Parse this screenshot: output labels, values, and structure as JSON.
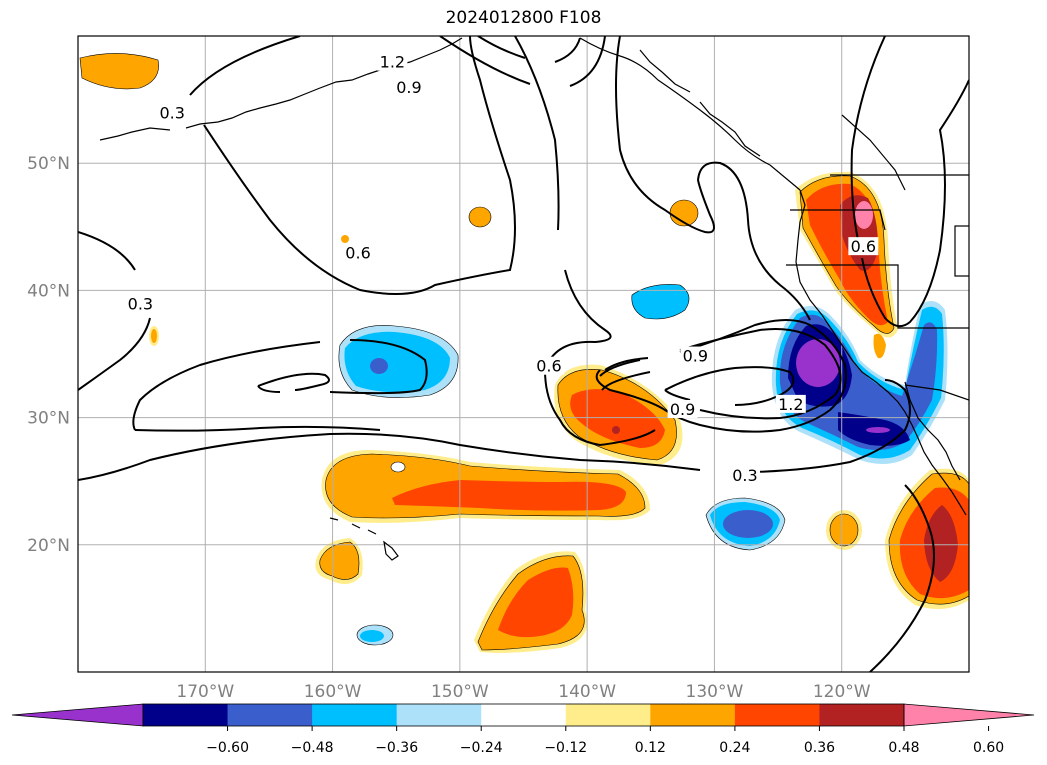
{
  "title": "2024012800 F108",
  "map": {
    "lon_range": [
      -180,
      -110
    ],
    "lat_range": [
      10,
      60
    ],
    "lon_ticks": [
      {
        "value": -170,
        "label": "170°W"
      },
      {
        "value": -160,
        "label": "160°W"
      },
      {
        "value": -150,
        "label": "150°W"
      },
      {
        "value": -140,
        "label": "140°W"
      },
      {
        "value": -130,
        "label": "130°W"
      },
      {
        "value": -120,
        "label": "120°W"
      }
    ],
    "lat_ticks": [
      {
        "value": 20,
        "label": "20°N"
      },
      {
        "value": 30,
        "label": "30°N"
      },
      {
        "value": 40,
        "label": "40°N"
      },
      {
        "value": 50,
        "label": "50°N"
      }
    ],
    "gridlines": true,
    "tick_label_color": "#808080"
  },
  "contour_labels": [
    {
      "text": "1.2",
      "lon": -155.3,
      "lat": 57.9
    },
    {
      "text": "0.9",
      "lon": -154.0,
      "lat": 55.9
    },
    {
      "text": "0.3",
      "lon": -172.6,
      "lat": 53.9
    },
    {
      "text": "0.6",
      "lon": -158.0,
      "lat": 42.9
    },
    {
      "text": "0.3",
      "lon": -175.1,
      "lat": 38.9
    },
    {
      "text": "0.6",
      "lon": -143.0,
      "lat": 34.0
    },
    {
      "text": "0.9",
      "lon": -132.5,
      "lat": 30.6
    },
    {
      "text": "0.9",
      "lon": -131.5,
      "lat": 34.8
    },
    {
      "text": "1.2",
      "lon": -124.0,
      "lat": 31.0
    },
    {
      "text": "0.3",
      "lon": -127.6,
      "lat": 25.4
    },
    {
      "text": "0.6",
      "lon": -118.3,
      "lat": 43.4
    }
  ],
  "colorbar": {
    "ticks": [
      "−0.60",
      "−0.48",
      "−0.36",
      "−0.24",
      "−0.12",
      "0.12",
      "0.24",
      "0.36",
      "0.48",
      "0.60"
    ],
    "colors": [
      "#9932CC",
      "#00008B",
      "#3A5FCD",
      "#00BFFF",
      "#ADE1FA",
      "#FFFFFF",
      "#FFEC8B",
      "#FFA500",
      "#FF4500",
      "#B22222",
      "#FF82AB"
    ]
  },
  "shading_colors": {
    "purple": "#9932CC",
    "navy": "#00008B",
    "royal": "#3A5FCD",
    "sky": "#00BFFF",
    "light": "#ADE1FA",
    "yellow": "#FFEC8B",
    "orange": "#FFA500",
    "red": "#FF4500",
    "brick": "#B22222",
    "pink": "#FF82AB"
  }
}
